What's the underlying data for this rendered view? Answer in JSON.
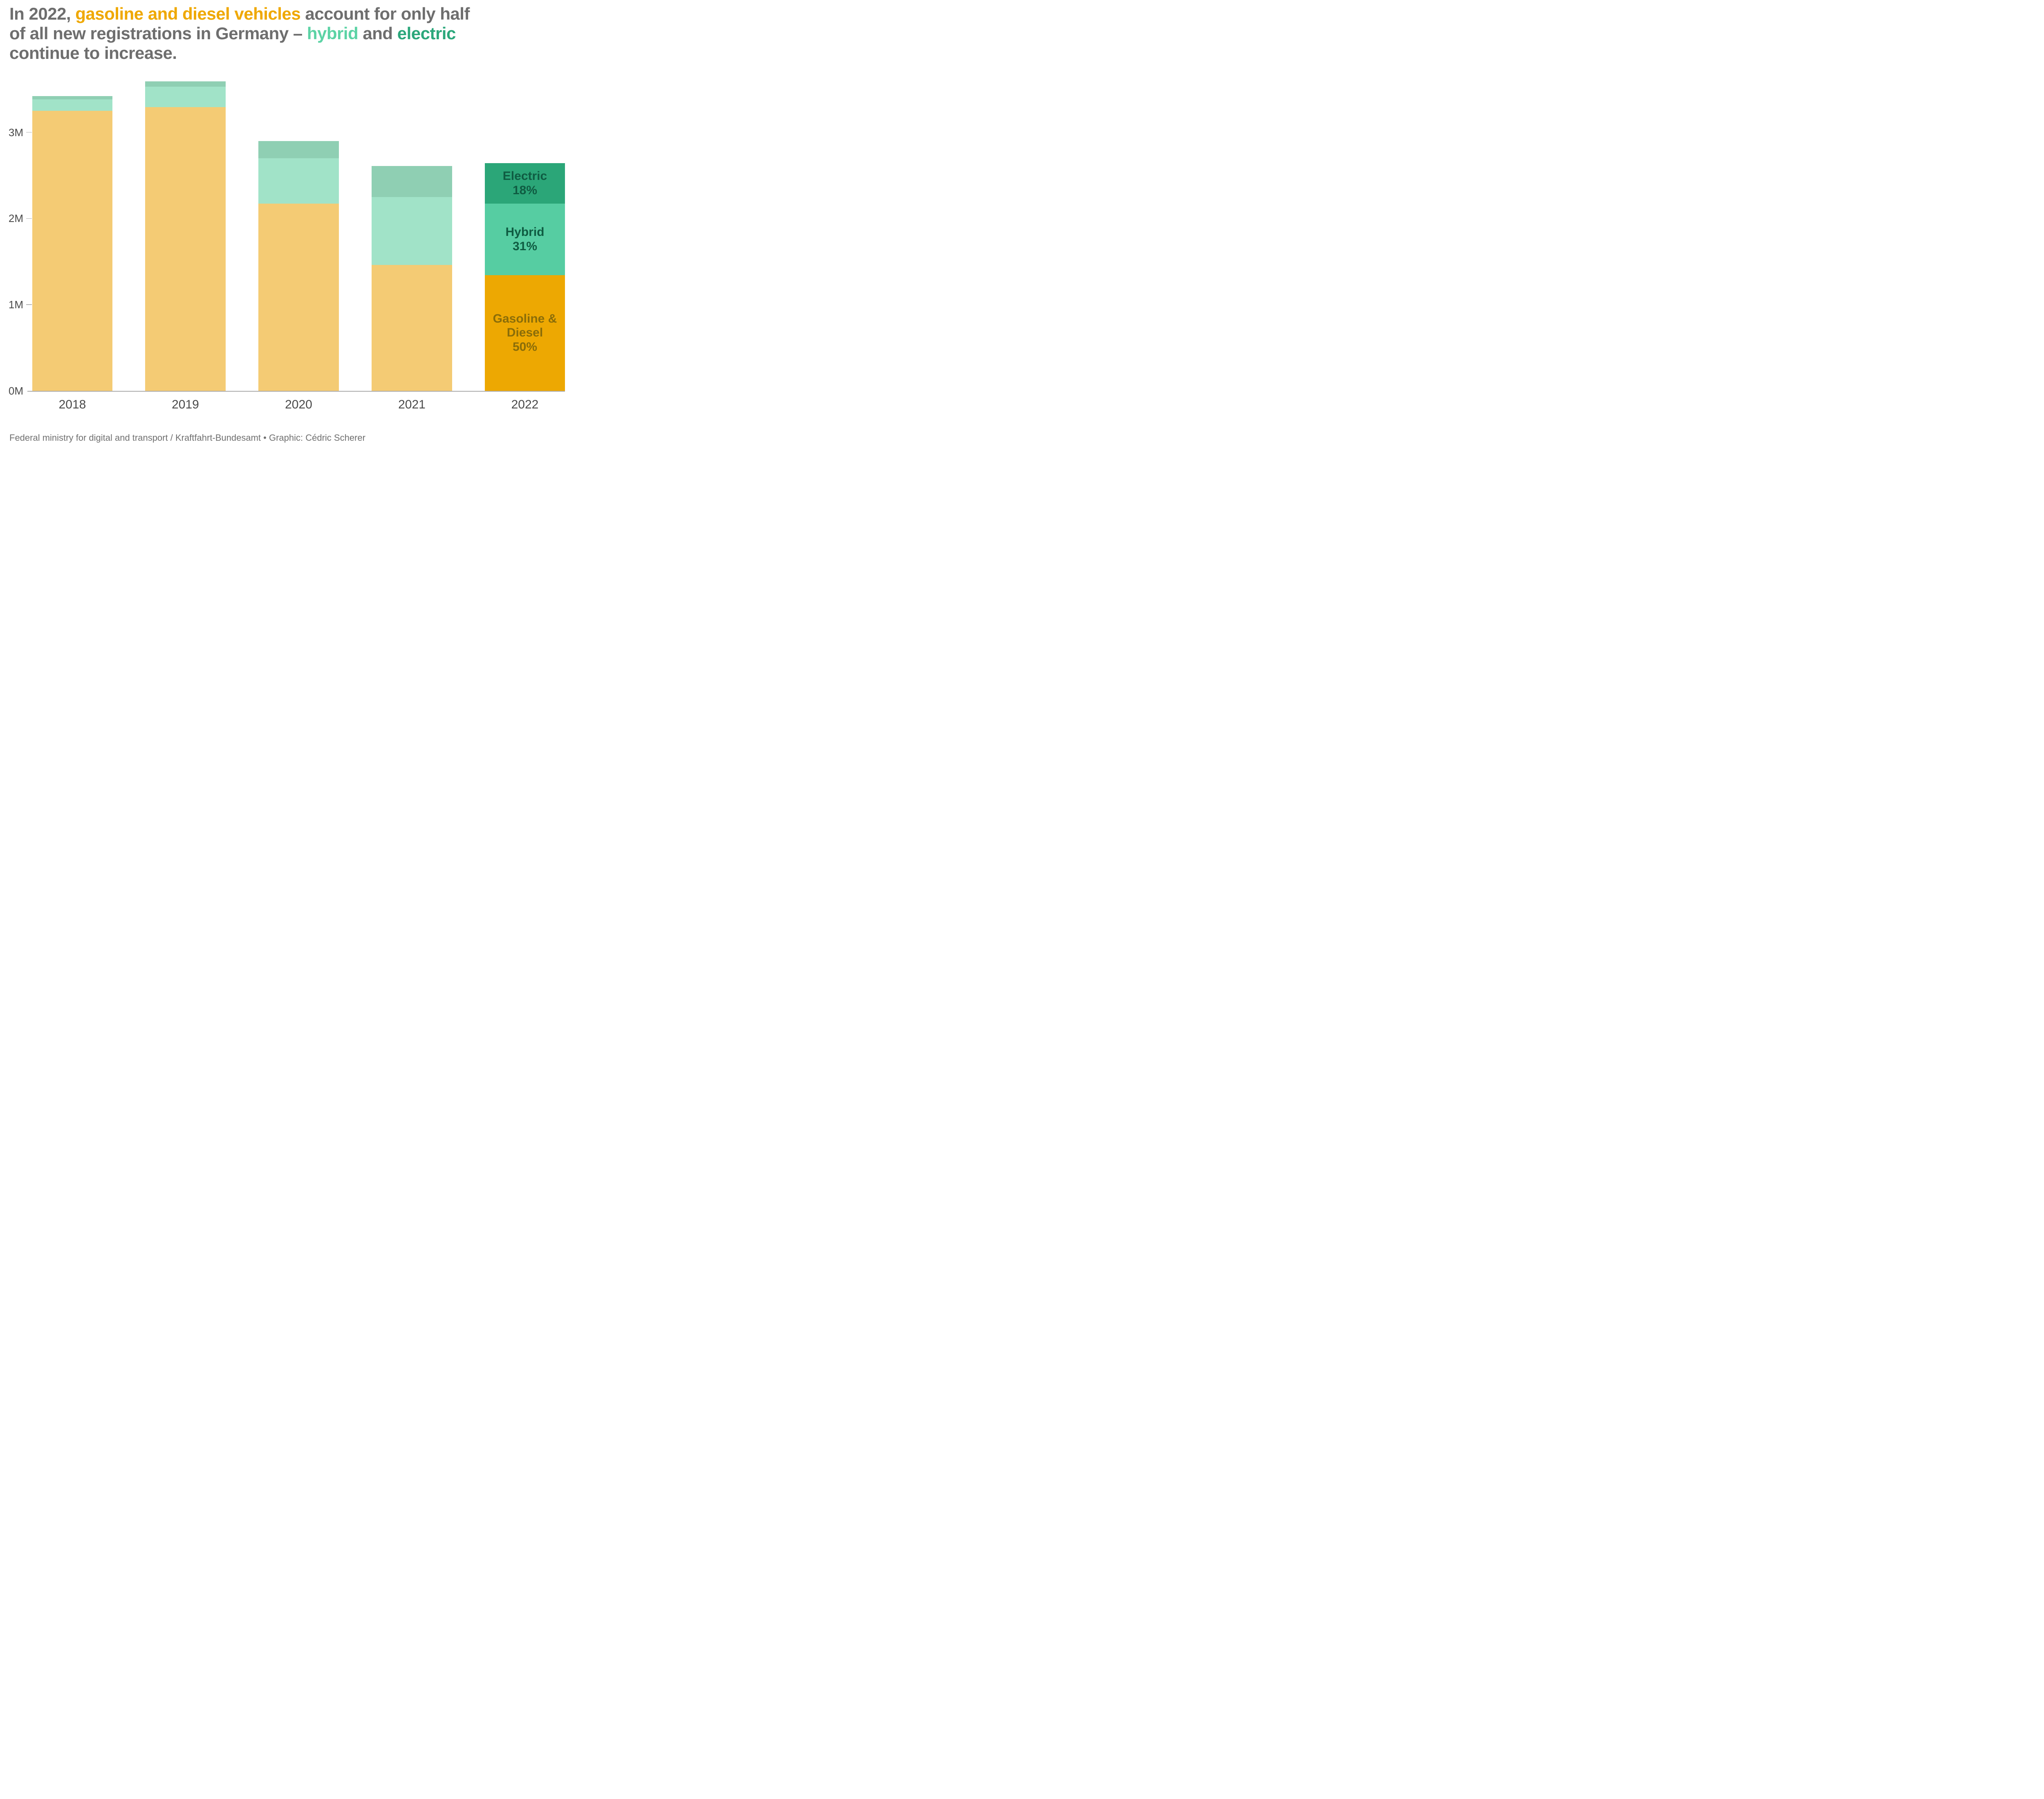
{
  "title": {
    "segments": [
      {
        "text": "In 2022, ",
        "color": "gray"
      },
      {
        "text": "gasoline and diesel vehicles",
        "color": "orange"
      },
      {
        "text": " account for only half",
        "color": "gray"
      },
      {
        "text": "of all new registrations in Germany – ",
        "color": "gray"
      },
      {
        "text": "hybrid",
        "color": "mint"
      },
      {
        "text": " and ",
        "color": "gray"
      },
      {
        "text": "electric",
        "color": "green"
      },
      {
        "text": "continue to increase.",
        "color": "gray"
      }
    ]
  },
  "caption": "Federal ministry for digital and transport / Kraftfahrt-Bundesamt • Graphic: Cédric Scherer",
  "colors": {
    "title_gray": "#6E6E6E",
    "title_orange": "#EFA800",
    "title_mint": "#5CD3A5",
    "title_green": "#2BA77B",
    "gasoline_muted": "#F4CB74",
    "hybrid_muted": "#A1E3C8",
    "electric_muted": "#8FCFB3",
    "gasoline_vivid": "#EDA802",
    "hybrid_vivid": "#56CDA2",
    "electric_vivid": "#2BA678",
    "label_dark_green": "#0F5C42",
    "label_olive": "#8A6D09",
    "axis_text": "#4A4A4A",
    "axis_line": "#ABABAB",
    "caption_gray": "#6F6F6F"
  },
  "chart_data": {
    "type": "bar",
    "stacked": true,
    "title": "In 2022, gasoline and diesel vehicles account for only half of all new registrations in Germany – hybrid and electric continue to increase.",
    "categories": [
      "2018",
      "2019",
      "2020",
      "2021",
      "2022"
    ],
    "series": [
      {
        "name": "Gasoline & Diesel",
        "values": [
          3.25,
          3.29,
          2.17,
          1.46,
          1.34
        ],
        "color_muted": "#F4CB74",
        "color_vivid": "#EDA802",
        "label_lines": [
          "Gasoline &",
          "Diesel",
          "50%"
        ],
        "label_pct": "50%",
        "label_class": "olive"
      },
      {
        "name": "Hybrid",
        "values": [
          0.13,
          0.24,
          0.53,
          0.79,
          0.83
        ],
        "color_muted": "#A1E3C8",
        "color_vivid": "#56CDA2",
        "label_lines": [
          "Hybrid",
          "31%"
        ],
        "label_pct": "31%",
        "label_class": "dkgreen"
      },
      {
        "name": "Electric",
        "values": [
          0.04,
          0.06,
          0.2,
          0.36,
          0.47
        ],
        "color_muted": "#8FCFB3",
        "color_vivid": "#2BA678",
        "label_lines": [
          "Electric",
          "18%"
        ],
        "label_pct": "18%",
        "label_class": "dkgreen"
      }
    ],
    "unit": "M",
    "xlabel": "",
    "ylabel": "",
    "yticks": [
      0,
      1,
      2,
      3
    ],
    "ytick_labels": [
      "0M",
      "1M",
      "2M",
      "3M"
    ],
    "ylim": [
      0,
      3.6
    ],
    "grid": false,
    "legend": "none (direct labels inside highlighted 2022 bar)",
    "highlight_category": "2022"
  }
}
